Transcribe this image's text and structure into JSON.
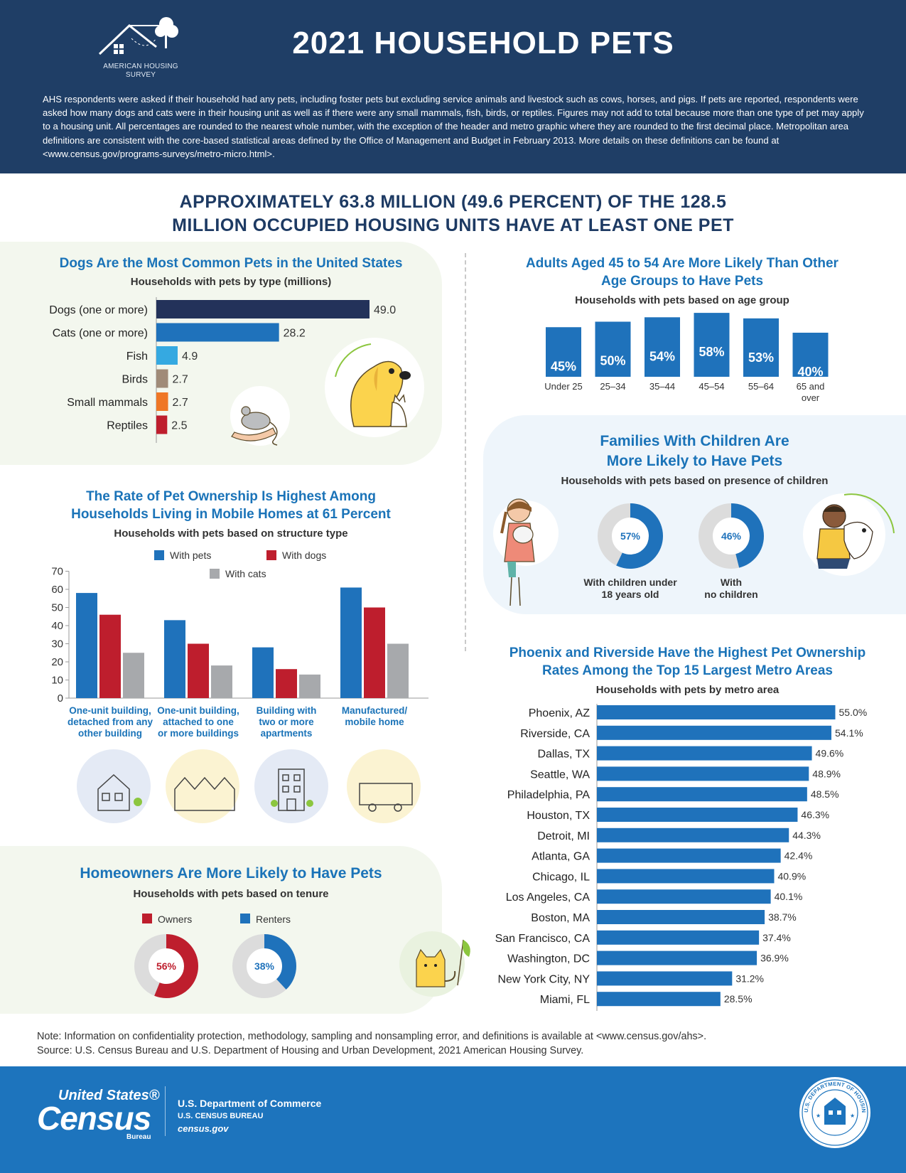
{
  "header": {
    "logo_text_1": "AMERICAN HOUSING",
    "logo_text_2": "SURVEY",
    "title": "2021 HOUSEHOLD PETS",
    "intro": "AHS respondents were asked if their household had any pets, including foster pets but excluding service animals and livestock such as cows, horses, and pigs. If pets are reported, respondents were asked how many dogs and cats were in their housing unit as well as if there were any small mammals, fish, birds, or reptiles. Figures may not add to total because more than one type of pet may apply to a housing unit. All percentages are rounded to the nearest whole number, with the exception of the header and metro graphic where they are rounded to the first decimal place. Metropolitan area definitions are consistent with the core-based statistical areas defined by the Office of Management and Budget in February 2013. More details on these definitions can be found at <www.census.gov/programs-surveys/metro-micro.html>."
  },
  "headline": {
    "line1": "APPROXIMATELY 63.8 MILLION (49.6 PERCENT) OF THE 128.5",
    "line2": "MILLION OCCUPIED HOUSING UNITS HAVE AT LEAST ONE PET"
  },
  "sections": {
    "pet_type": {
      "title": "Dogs Are the Most Common Pets in the United States",
      "subtitle": "Households with pets by type (millions)"
    },
    "age": {
      "title_1": "Adults Aged 45 to 54 Are More Likely Than Other",
      "title_2": "Age Groups to Have Pets",
      "subtitle": "Households with pets based on age group"
    },
    "children": {
      "title_1": "Families With Children Are",
      "title_2": "More Likely to Have Pets",
      "subtitle": "Households with pets based on presence of children"
    },
    "structure": {
      "title_1": "The Rate of Pet Ownership Is Highest Among",
      "title_2": "Households Living in Mobile Homes at 61 Percent",
      "subtitle": "Households with pets based on structure type"
    },
    "metro": {
      "title_1": "Phoenix and Riverside Have the Highest Pet Ownership",
      "title_2": "Rates Among the Top 15 Largest Metro Areas",
      "subtitle": "Households with pets by metro area"
    },
    "tenure": {
      "title": "Homeowners Are More Likely to Have Pets",
      "subtitle": "Households with pets based on tenure"
    }
  },
  "chart_data": [
    {
      "type": "bar",
      "orientation": "horizontal",
      "title": "Dogs Are the Most Common Pets in the United States",
      "subtitle": "Households with pets by type (millions)",
      "categories": [
        "Dogs (one or more)",
        "Cats (one or more)",
        "Fish",
        "Birds",
        "Small mammals",
        "Reptiles"
      ],
      "values": [
        49.0,
        28.2,
        4.9,
        2.7,
        2.7,
        2.5
      ],
      "value_labels": [
        "49.0",
        "28.2",
        "4.9",
        "2.7",
        "2.7",
        "2.5"
      ],
      "colors": [
        "#23325a",
        "#1f72bb",
        "#35a9e1",
        "#a08b78",
        "#ef7625",
        "#be1e2d"
      ]
    },
    {
      "type": "bar",
      "title": "Adults Aged 45 to 54 Are More Likely Than Other Age Groups to Have Pets",
      "subtitle": "Households with pets based on age group",
      "categories": [
        "Under 25",
        "25–34",
        "35–44",
        "45–54",
        "55–64",
        "65 and over"
      ],
      "values": [
        45,
        50,
        54,
        58,
        53,
        40
      ],
      "value_labels": [
        "45%",
        "50%",
        "54%",
        "58%",
        "53%",
        "40%"
      ],
      "color": "#1f72bb"
    },
    {
      "type": "pie",
      "style": "donut",
      "title": "Families With Children Are More Likely to Have Pets",
      "subtitle": "Households with pets based on presence of children",
      "categories": [
        "With children under 18 years old",
        "With no children"
      ],
      "values": [
        57,
        46
      ],
      "value_labels": [
        "57%",
        "46%"
      ],
      "color": "#1f72bb"
    },
    {
      "type": "bar",
      "title": "The Rate of Pet Ownership Is Highest Among Households Living in Mobile Homes at 61 Percent",
      "subtitle": "Households with pets based on structure type",
      "categories": [
        "One-unit building, detached from any other building",
        "One-unit building, attached to one or more buildings",
        "Building with two or more apartments",
        "Manufactured/ mobile home"
      ],
      "category_lines": [
        [
          "One-unit building,",
          "detached from any",
          "other building"
        ],
        [
          "One-unit building,",
          "attached to one",
          "or more buildings"
        ],
        [
          "Building with",
          "two or more",
          "apartments"
        ],
        [
          "Manufactured/",
          "mobile home"
        ]
      ],
      "series": [
        {
          "name": "With pets",
          "values": [
            58,
            43,
            28,
            61
          ],
          "color": "#1f72bb"
        },
        {
          "name": "With dogs",
          "values": [
            46,
            30,
            16,
            50
          ],
          "color": "#be1e2d"
        },
        {
          "name": "With cats",
          "values": [
            25,
            18,
            13,
            30
          ],
          "color": "#a7a9ac"
        }
      ],
      "ylim": [
        0,
        70
      ],
      "yticks": [
        "0",
        "10",
        "20",
        "30",
        "40",
        "50",
        "60",
        "70"
      ],
      "legend": "top"
    },
    {
      "type": "bar",
      "orientation": "horizontal",
      "title": "Phoenix and Riverside Have the Highest Pet Ownership Rates Among the Top 15 Largest Metro Areas",
      "subtitle": "Households with pets by metro area",
      "categories": [
        "Phoenix, AZ",
        "Riverside, CA",
        "Dallas, TX",
        "Seattle, WA",
        "Philadelphia, PA",
        "Houston, TX",
        "Detroit, MI",
        "Atlanta, GA",
        "Chicago, IL",
        "Los Angeles, CA",
        "Boston, MA",
        "San Francisco, CA",
        "Washington, DC",
        "New York City, NY",
        "Miami, FL"
      ],
      "values": [
        55.0,
        54.1,
        49.6,
        48.9,
        48.5,
        46.3,
        44.3,
        42.4,
        40.9,
        40.1,
        38.7,
        37.4,
        36.9,
        31.2,
        28.5
      ],
      "value_labels": [
        "55.0%",
        "54.1%",
        "49.6%",
        "48.9%",
        "48.5%",
        "46.3%",
        "44.3%",
        "42.4%",
        "40.9%",
        "40.1%",
        "38.7%",
        "37.4%",
        "36.9%",
        "31.2%",
        "28.5%"
      ],
      "color": "#1f72bb"
    },
    {
      "type": "pie",
      "style": "donut",
      "title": "Homeowners Are More Likely to Have Pets",
      "subtitle": "Households with pets based on tenure",
      "categories": [
        "Owners",
        "Renters"
      ],
      "values": [
        56,
        38
      ],
      "value_labels": [
        "56%",
        "38%"
      ],
      "colors": [
        "#be1e2d",
        "#1f72bb"
      ],
      "legend": "top"
    }
  ],
  "note": {
    "line1": "Note: Information on confidentiality protection, methodology, sampling and nonsampling error, and definitions is available at <www.census.gov/ahs>.",
    "line2": "Source: U.S. Census Bureau and U.S. Department of Housing and Urban Development, 2021 American Housing Survey."
  },
  "footer": {
    "census_top": "United States®",
    "census_big": "Census",
    "census_bureau": "Bureau",
    "line1": "U.S. Department of Commerce",
    "line2": "U.S. CENSUS BUREAU",
    "line3": "census.gov",
    "seal_text": "U.S. DEPARTMENT OF HOUSING AND URBAN DEVELOPMENT"
  }
}
